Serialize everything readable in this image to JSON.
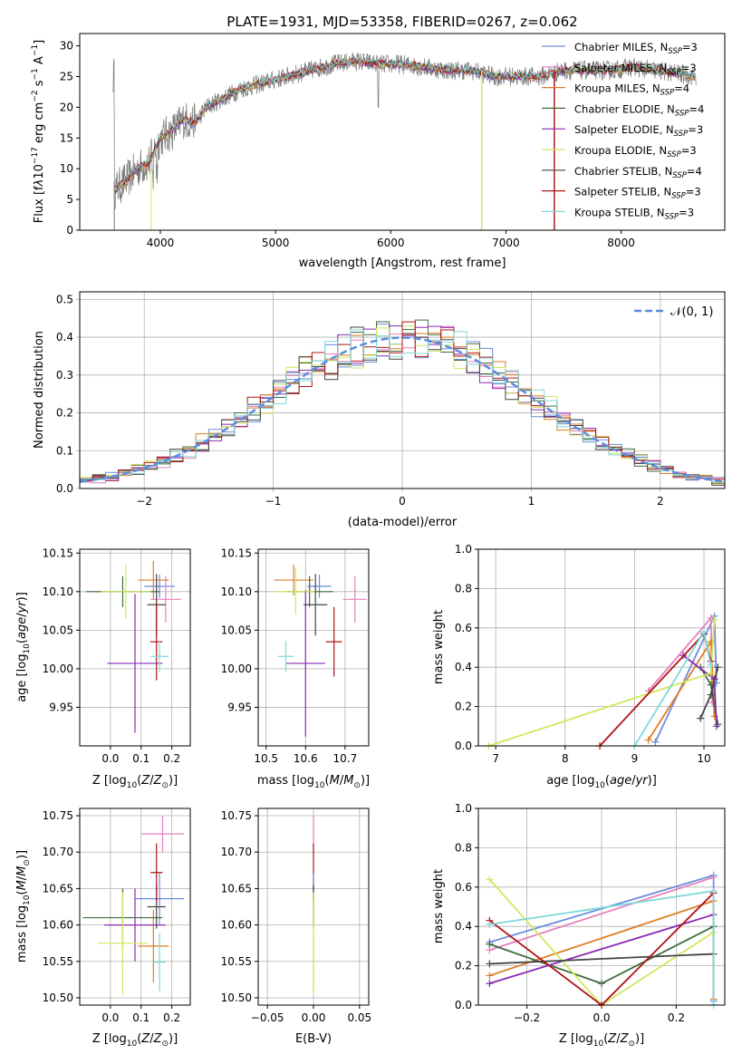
{
  "colors": {
    "Chabrier MILES": "#6a8cdb",
    "Salpeter MILES": "#e67fbd",
    "Kroupa MILES": "#e07b24",
    "Chabrier ELODIE": "#3f6b3f",
    "Salpeter ELODIE": "#8a2ab5",
    "Kroupa ELODIE": "#cfe85a",
    "Chabrier STELIB": "#444444",
    "Salpeter STELIB": "#b01515",
    "Kroupa STELIB": "#7fd8d8"
  },
  "chart_data": [
    {
      "id": "spectrum",
      "type": "line",
      "title": "PLATE=1931, MJD=53358, FIBERID=0267, z=0.062",
      "xlabel": "wavelength [Angstrom, rest frame]",
      "ylabel": "Flux [f_λ10^-17 erg cm^-2 s^-1 A^-1]",
      "xlim": [
        3300,
        8900
      ],
      "ylim": [
        0,
        32
      ],
      "xticks": [
        "4000",
        "5000",
        "6000",
        "7000",
        "8000"
      ],
      "yticks": [
        "0",
        "5",
        "10",
        "15",
        "20",
        "25",
        "30"
      ],
      "legend_position": "top-right",
      "grid": false,
      "legend": [
        {
          "name": "Chabrier MILES",
          "nssp": "3"
        },
        {
          "name": "Salpeter MILES",
          "nssp": "3"
        },
        {
          "name": "Kroupa MILES",
          "nssp": "4"
        },
        {
          "name": "Chabrier ELODIE",
          "nssp": "4"
        },
        {
          "name": "Salpeter ELODIE",
          "nssp": "3"
        },
        {
          "name": "Kroupa ELODIE",
          "nssp": "3"
        },
        {
          "name": "Chabrier STELIB",
          "nssp": "4"
        },
        {
          "name": "Salpeter STELIB",
          "nssp": "3"
        },
        {
          "name": "Kroupa STELIB",
          "nssp": "3"
        }
      ],
      "continuum": [
        [
          3600,
          6.5
        ],
        [
          3700,
          8
        ],
        [
          3800,
          10
        ],
        [
          3900,
          11
        ],
        [
          4000,
          15
        ],
        [
          4100,
          16
        ],
        [
          4200,
          18
        ],
        [
          4300,
          17.5
        ],
        [
          4400,
          20
        ],
        [
          4500,
          21
        ],
        [
          4700,
          23
        ],
        [
          4900,
          24
        ],
        [
          5100,
          25
        ],
        [
          5300,
          26
        ],
        [
          5500,
          27
        ],
        [
          5700,
          27.5
        ],
        [
          5900,
          27
        ],
        [
          6100,
          27
        ],
        [
          6300,
          26.5
        ],
        [
          6500,
          26
        ],
        [
          6700,
          26
        ],
        [
          6900,
          25
        ],
        [
          7100,
          25
        ],
        [
          7300,
          25
        ],
        [
          7500,
          26
        ],
        [
          7700,
          26
        ],
        [
          7900,
          26
        ],
        [
          8100,
          26.5
        ],
        [
          8300,
          26
        ],
        [
          8500,
          25.5
        ],
        [
          8650,
          25
        ]
      ]
    },
    {
      "id": "residuals",
      "type": "step",
      "xlabel": "(data-model)/error",
      "ylabel": "Normed distribution",
      "xlim": [
        -2.5,
        2.5
      ],
      "ylim": [
        0,
        0.52
      ],
      "xticks": [
        "−2",
        "−1",
        "0",
        "1",
        "2"
      ],
      "yticks": [
        "0.0",
        "0.1",
        "0.2",
        "0.3",
        "0.4",
        "0.5"
      ],
      "grid": true,
      "legend": "𝒩(0, 1)",
      "legend_position": "top-right",
      "bin_width": 0.1
    },
    {
      "id": "age_vs_Z",
      "type": "errorbar",
      "xlabel": "Z [log10(Z/Z⊙)]",
      "ylabel": "age [log10(age/yr)]",
      "xlim": [
        -0.1,
        0.26
      ],
      "ylim": [
        9.9,
        10.155
      ],
      "xticks": [
        "0.0",
        "0.1",
        "0.2"
      ],
      "yticks": [
        "9.95",
        "10.00",
        "10.05",
        "10.10",
        "10.15"
      ],
      "points": [
        {
          "s": "Chabrier MILES",
          "x": 0.16,
          "y": 10.107,
          "ex": 0.05,
          "ey": 0.015
        },
        {
          "s": "Salpeter MILES",
          "x": 0.18,
          "y": 10.09,
          "ex": 0.05,
          "ey": 0.03
        },
        {
          "s": "Kroupa MILES",
          "x": 0.14,
          "y": 10.115,
          "ex": 0.05,
          "ey": 0.025
        },
        {
          "s": "Chabrier ELODIE",
          "x": 0.04,
          "y": 10.1,
          "ex": 0.12,
          "ey": 0.02
        },
        {
          "s": "Salpeter ELODIE",
          "x": 0.08,
          "y": 10.007,
          "ex": 0.09,
          "ey": 0.09
        },
        {
          "s": "Kroupa ELODIE",
          "x": 0.05,
          "y": 10.1,
          "ex": 0.08,
          "ey": 0.035
        },
        {
          "s": "Chabrier STELIB",
          "x": 0.15,
          "y": 10.083,
          "ex": 0.03,
          "ey": 0.04
        },
        {
          "s": "Salpeter STELIB",
          "x": 0.15,
          "y": 10.035,
          "ex": 0.02,
          "ey": 0.05
        },
        {
          "s": "Kroupa STELIB",
          "x": 0.16,
          "y": 10.016,
          "ex": 0.03,
          "ey": 0.02
        }
      ]
    },
    {
      "id": "age_vs_mass",
      "type": "errorbar",
      "xlabel": "mass [log10(M/M⊙)]",
      "ylabel": "",
      "xlim": [
        10.48,
        10.76
      ],
      "ylim": [
        9.9,
        10.155
      ],
      "xticks": [
        "10.5",
        "10.6",
        "10.7"
      ],
      "yticks": [
        "9.95",
        "10.00",
        "10.05",
        "10.10",
        "10.15"
      ],
      "points": [
        {
          "s": "Chabrier MILES",
          "x": 10.635,
          "y": 10.107,
          "ex": 0.03,
          "ey": 0.015
        },
        {
          "s": "Salpeter MILES",
          "x": 10.725,
          "y": 10.09,
          "ex": 0.03,
          "ey": 0.03
        },
        {
          "s": "Kroupa MILES",
          "x": 10.57,
          "y": 10.115,
          "ex": 0.05,
          "ey": 0.02
        },
        {
          "s": "Chabrier ELODIE",
          "x": 10.61,
          "y": 10.1,
          "ex": 0.06,
          "ey": 0.02
        },
        {
          "s": "Salpeter ELODIE",
          "x": 10.6,
          "y": 10.007,
          "ex": 0.05,
          "ey": 0.095
        },
        {
          "s": "Kroupa ELODIE",
          "x": 10.575,
          "y": 10.1,
          "ex": 0.05,
          "ey": 0.03
        },
        {
          "s": "Chabrier STELIB",
          "x": 10.625,
          "y": 10.083,
          "ex": 0.03,
          "ey": 0.04
        },
        {
          "s": "Salpeter STELIB",
          "x": 10.672,
          "y": 10.035,
          "ex": 0.02,
          "ey": 0.045
        },
        {
          "s": "Kroupa STELIB",
          "x": 10.55,
          "y": 10.016,
          "ex": 0.02,
          "ey": 0.02
        }
      ]
    },
    {
      "id": "weight_vs_age",
      "type": "line",
      "xlabel": "age [log10(age/yr)]",
      "ylabel": "mass weight",
      "xlim": [
        6.75,
        10.3
      ],
      "ylim": [
        0,
        1
      ],
      "xticks": [
        "7",
        "8",
        "9",
        "10"
      ],
      "yticks": [
        "0.0",
        "0.2",
        "0.4",
        "0.6",
        "0.8",
        "1.0"
      ],
      "grid": true,
      "series": [
        {
          "s": "Chabrier MILES",
          "x": [
            9.3,
            10.15,
            10.18
          ],
          "y": [
            0.02,
            0.66,
            0.32
          ]
        },
        {
          "s": "Salpeter MILES",
          "x": [
            9.2,
            10.1,
            10.12
          ],
          "y": [
            0.28,
            0.65,
            0.22
          ]
        },
        {
          "s": "Kroupa MILES",
          "x": [
            9.2,
            10.1,
            10.15
          ],
          "y": [
            0.03,
            0.53,
            0.15
          ]
        },
        {
          "s": "Chabrier ELODIE",
          "x": [
            9.95,
            10.1,
            10.2
          ],
          "y": [
            0.4,
            0.31,
            0.11
          ]
        },
        {
          "s": "Salpeter ELODIE",
          "x": [
            9.7,
            10.15,
            10.18
          ],
          "y": [
            0.46,
            0.34,
            0.1
          ]
        },
        {
          "s": "Kroupa ELODIE",
          "x": [
            6.9,
            10.1,
            10.15
          ],
          "y": [
            0.0,
            0.37,
            0.64
          ]
        },
        {
          "s": "Chabrier STELIB",
          "x": [
            9.95,
            10.1,
            10.2
          ],
          "y": [
            0.14,
            0.26,
            0.4
          ]
        },
        {
          "s": "Salpeter STELIB",
          "x": [
            8.5,
            10.0,
            10.1
          ],
          "y": [
            0.0,
            0.57,
            0.43
          ]
        },
        {
          "s": "Kroupa STELIB",
          "x": [
            9.0,
            10.0,
            10.1
          ],
          "y": [
            0.0,
            0.58,
            0.41
          ]
        }
      ]
    },
    {
      "id": "mass_vs_Z",
      "type": "errorbar",
      "xlabel": "Z [log10(Z/Z⊙)]",
      "ylabel": "mass [log10(M/M⊙)]",
      "xlim": [
        -0.1,
        0.26
      ],
      "ylim": [
        10.49,
        10.76
      ],
      "xticks": [
        "0.0",
        "0.1",
        "0.2"
      ],
      "yticks": [
        "10.50",
        "10.55",
        "10.60",
        "10.65",
        "10.70",
        "10.75"
      ],
      "points": [
        {
          "s": "Chabrier MILES",
          "x": 0.16,
          "y": 10.636,
          "ex": 0.08,
          "ey": 0.035
        },
        {
          "s": "Salpeter MILES",
          "x": 0.17,
          "y": 10.725,
          "ex": 0.07,
          "ey": 0.025
        },
        {
          "s": "Kroupa MILES",
          "x": 0.14,
          "y": 10.571,
          "ex": 0.05,
          "ey": 0.05
        },
        {
          "s": "Chabrier ELODIE",
          "x": 0.04,
          "y": 10.61,
          "ex": 0.13,
          "ey": 0.04
        },
        {
          "s": "Salpeter ELODIE",
          "x": 0.08,
          "y": 10.6,
          "ex": 0.1,
          "ey": 0.05
        },
        {
          "s": "Kroupa ELODIE",
          "x": 0.04,
          "y": 10.575,
          "ex": 0.08,
          "ey": 0.07
        },
        {
          "s": "Chabrier STELIB",
          "x": 0.15,
          "y": 10.625,
          "ex": 0.03,
          "ey": 0.03
        },
        {
          "s": "Salpeter STELIB",
          "x": 0.15,
          "y": 10.672,
          "ex": 0.02,
          "ey": 0.04
        },
        {
          "s": "Kroupa STELIB",
          "x": 0.16,
          "y": 10.549,
          "ex": 0.02,
          "ey": 0.04
        }
      ]
    },
    {
      "id": "mass_vs_ebv",
      "type": "errorbar",
      "xlabel": "E(B-V)",
      "ylabel": "",
      "xlim": [
        -0.06,
        0.06
      ],
      "ylim": [
        10.49,
        10.76
      ],
      "xticks": [
        "−0.05",
        "0.00",
        "0.05"
      ],
      "yticks": [
        "10.50",
        "10.55",
        "10.60",
        "10.65",
        "10.70",
        "10.75"
      ],
      "points": [
        {
          "s": "Salpeter MILES",
          "x": 0,
          "y": 10.725,
          "ex": 0,
          "ey": 0.025
        },
        {
          "s": "Salpeter STELIB",
          "x": 0,
          "y": 10.672,
          "ex": 0,
          "ey": 0.04
        },
        {
          "s": "Chabrier MILES",
          "x": 0,
          "y": 10.636,
          "ex": 0,
          "ey": 0.035
        },
        {
          "s": "Chabrier STELIB",
          "x": 0,
          "y": 10.625,
          "ex": 0,
          "ey": 0.03
        },
        {
          "s": "Kroupa STELIB",
          "x": 0,
          "y": 10.549,
          "ex": 0,
          "ey": 0.04
        },
        {
          "s": "Kroupa ELODIE",
          "x": 0,
          "y": 10.575,
          "ex": 0,
          "ey": 0.07
        }
      ]
    },
    {
      "id": "weight_vs_Z",
      "type": "line",
      "xlabel": "Z [log10(Z/Z⊙)]",
      "ylabel": "mass weight",
      "xlim": [
        -0.33,
        0.33
      ],
      "ylim": [
        0,
        1
      ],
      "xticks": [
        "−0.2",
        "0.0",
        "0.2"
      ],
      "yticks": [
        "0.0",
        "0.2",
        "0.4",
        "0.6",
        "0.8",
        "1.0"
      ],
      "grid": true,
      "series": [
        {
          "s": "Chabrier MILES",
          "x": [
            -0.3,
            0.3,
            0.3
          ],
          "y": [
            0.32,
            0.66,
            0.02
          ]
        },
        {
          "s": "Salpeter MILES",
          "x": [
            -0.3,
            0.3
          ],
          "y": [
            0.28,
            0.65
          ]
        },
        {
          "s": "Kroupa MILES",
          "x": [
            -0.3,
            0.3,
            0.3
          ],
          "y": [
            0.15,
            0.53,
            0.03
          ]
        },
        {
          "s": "Chabrier ELODIE",
          "x": [
            -0.3,
            0.0,
            0.3
          ],
          "y": [
            0.31,
            0.11,
            0.4
          ]
        },
        {
          "s": "Salpeter ELODIE",
          "x": [
            -0.3,
            0.3
          ],
          "y": [
            0.11,
            0.46
          ]
        },
        {
          "s": "Kroupa ELODIE",
          "x": [
            -0.3,
            0.0,
            0.3
          ],
          "y": [
            0.64,
            0.0,
            0.37
          ]
        },
        {
          "s": "Chabrier STELIB",
          "x": [
            -0.3,
            0.3
          ],
          "y": [
            0.21,
            0.26
          ]
        },
        {
          "s": "Salpeter STELIB",
          "x": [
            -0.3,
            0.0,
            0.3
          ],
          "y": [
            0.43,
            0.0,
            0.57
          ]
        },
        {
          "s": "Kroupa STELIB",
          "x": [
            -0.3,
            0.3,
            0.3
          ],
          "y": [
            0.41,
            0.58,
            0.0
          ]
        }
      ]
    }
  ]
}
